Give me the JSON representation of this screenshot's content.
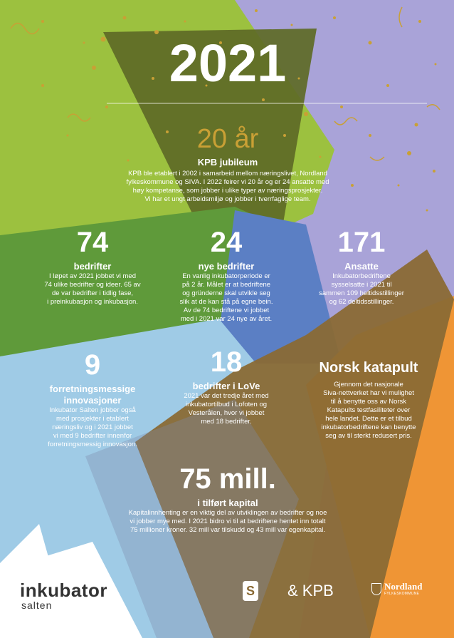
{
  "year": "2021",
  "anniversary": {
    "headline": "20 år",
    "title": "KPB jubileum",
    "lines": [
      "KPB ble etablert i 2002 i samarbeid mellom næringslivet, Nordland",
      "fylkeskommune og SIVA. I 2022 feirer vi 20 år og er 24 ansatte med",
      "høy kompetanse, som jobber i ulike typer av næringsprosjekter.",
      "Vi har et ungt arbeidsmiljø og jobber i tverrfaglige team."
    ]
  },
  "stats": [
    {
      "number": "74",
      "label": "bedrifter",
      "lines": [
        "I løpet av 2021 jobbet vi med",
        "74 ulike bedrifter og ideer. 65 av",
        "de var bedrifter i tidlig fase,",
        "i preinkubasjon og inkubasjon."
      ]
    },
    {
      "number": "24",
      "label": "nye bedrifter",
      "lines": [
        "En vanlig inkubatorperiode er",
        "på 2 år. Målet er at bedriftene",
        "og gründerne skal utvikle seg",
        "slik at de kan stå på egne bein.",
        "Av de 74 bedriftene vi jobbet",
        "med i 2021 var 24 nye av året."
      ]
    },
    {
      "number": "171",
      "label": "Ansatte",
      "lines": [
        "Inkubatorbedriftene",
        "sysselsatte i 2021 til",
        "sammen 109 heltidsstillinger",
        "og 62 deltidsstillinger."
      ]
    },
    {
      "number": "9",
      "label": "forretningsmessige",
      "label2": "innovasjoner",
      "lines": [
        "Inkubator Salten jobber også",
        "med prosjekter i etablert",
        "næringsliv og i 2021 jobbet",
        "vi med 9 bedrifter innenfor",
        "forretningsmessig innovasjon."
      ]
    },
    {
      "number": "18",
      "label": "bedrifter i LoVe",
      "lines": [
        "2021 var det tredje året med",
        "inkubatortilbud i Lofoten og",
        "Vesterålen, hvor vi jobbet",
        "med 18 bedrifter."
      ]
    },
    {
      "number": "Norsk katapult",
      "lines": [
        "Gjennom det nasjonale",
        "Siva-nettverket har vi mulighet",
        "til å benytte oss av Norsk",
        "Katapults testfasiliteter over",
        "hele landet. Dette er et tilbud",
        "inkubatorbedriftene kan benytte",
        "seg av til sterkt redusert pris."
      ]
    }
  ],
  "capital": {
    "number": "75 mill.",
    "label": "i tilført kapital",
    "lines": [
      "Kapitalinnhenting er en viktig del av utviklingen av bedrifter og noe",
      "vi jobber mye med. I 2021 bidro vi til at bedriftene hentet inn totalt",
      "75 millioner kroner. 32 mill var tilskudd og 43 mill var egenkapital."
    ]
  },
  "logos": {
    "inkubator": "inkubator",
    "salten": "salten",
    "siva_letter": "S",
    "kpb": "& KPB",
    "nordland": "Nordland",
    "fylkeskommune": "FYLKESKOMMUNE"
  },
  "colors": {
    "green": "#9cc13f",
    "darkgreen": "#5f8f3a",
    "olive": "#5e6a26",
    "lavender": "#a9a3d8",
    "lightblue": "#9fcbe6",
    "blue": "#5b7fc4",
    "orange": "#ef9535",
    "brown": "#8a6a35",
    "gold": "#c9a035"
  }
}
